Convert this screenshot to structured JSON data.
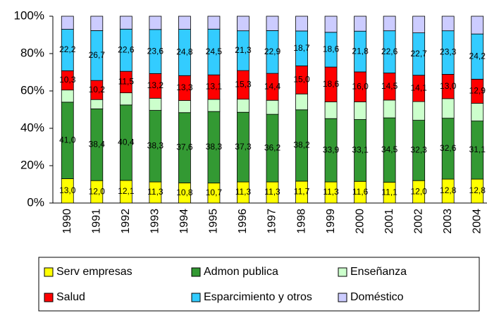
{
  "chart_data": {
    "type": "stacked_bar",
    "categories": [
      "1990",
      "1991",
      "1992",
      "1993",
      "1994",
      "1995",
      "1996",
      "1997",
      "1998",
      "1999",
      "2000",
      "2001",
      "2002",
      "2003",
      "2004"
    ],
    "series": [
      {
        "name": "Serv empresas",
        "color": "#ffff00",
        "values": [
          13.0,
          12.0,
          12.1,
          11.3,
          10.8,
          10.7,
          11.3,
          11.3,
          11.7,
          11.3,
          11.6,
          11.1,
          12.0,
          12.8,
          12.8
        ],
        "value_labels": [
          "13,0",
          "12,0",
          "12,1",
          "11,3",
          "10,8",
          "10,7",
          "11,3",
          "11,3",
          "11,7",
          "11,3",
          "11,6",
          "11,1",
          "12,0",
          "12,8",
          "12,8"
        ]
      },
      {
        "name": "Admon publica",
        "color": "#339933",
        "values": [
          41.0,
          38.4,
          40.4,
          38.3,
          37.6,
          38.3,
          37.3,
          36.2,
          38.2,
          33.9,
          33.1,
          34.5,
          32.3,
          32.6,
          31.1
        ],
        "value_labels": [
          "41,0",
          "38,4",
          "40,4",
          "38,3",
          "37,6",
          "38,3",
          "37,3",
          "36,2",
          "38,2",
          "33,9",
          "33,1",
          "34,5",
          "32,3",
          "32,6",
          "31,1"
        ]
      },
      {
        "name": "Enseñanza",
        "color": "#ccffcc",
        "values": [
          6.5,
          5.0,
          6.5,
          6.5,
          6.5,
          6.5,
          7.0,
          7.5,
          8.5,
          9.0,
          9.5,
          9.5,
          10.0,
          10.5,
          9.5
        ]
      },
      {
        "name": "Salud",
        "color": "#ff0000",
        "values": [
          10.3,
          10.2,
          11.5,
          13.2,
          13.3,
          13.1,
          15.3,
          14.4,
          15.0,
          18.6,
          16.0,
          14.5,
          14.1,
          13.0,
          12.9
        ],
        "value_labels": [
          "10,3",
          "10,2",
          "11,5",
          "13,2",
          "13,3",
          "13,1",
          "15,3",
          "14,4",
          "15,0",
          "18,6",
          "16,0",
          "14,5",
          "14,1",
          "13,0",
          "12,9"
        ]
      },
      {
        "name": "Esparcimiento y otros",
        "color": "#33ccff",
        "values": [
          22.2,
          26.7,
          22.6,
          23.6,
          24.8,
          24.5,
          21.3,
          22.9,
          18.7,
          18.6,
          21.8,
          22.6,
          22.7,
          23.3,
          24.2
        ],
        "value_labels": [
          "22,2",
          "26,7",
          "22,6",
          "23,6",
          "24,8",
          "24,5",
          "21,3",
          "22,9",
          "18,7",
          "18,6",
          "21,8",
          "22,6",
          "22,7",
          "23,3",
          "24,2"
        ]
      },
      {
        "name": "Doméstico",
        "color": "#ccccff",
        "values": [
          7.0,
          7.7,
          6.9,
          7.1,
          7.0,
          6.9,
          7.8,
          7.7,
          7.9,
          8.6,
          8.0,
          7.8,
          8.9,
          7.8,
          9.5
        ]
      }
    ],
    "ylim": [
      0,
      100
    ],
    "yticks": [
      {
        "value": 0,
        "label": "0%"
      },
      {
        "value": 20,
        "label": "20%"
      },
      {
        "value": 40,
        "label": "40%"
      },
      {
        "value": 60,
        "label": "60%"
      },
      {
        "value": 80,
        "label": "80%"
      },
      {
        "value": 100,
        "label": "100%"
      }
    ]
  }
}
